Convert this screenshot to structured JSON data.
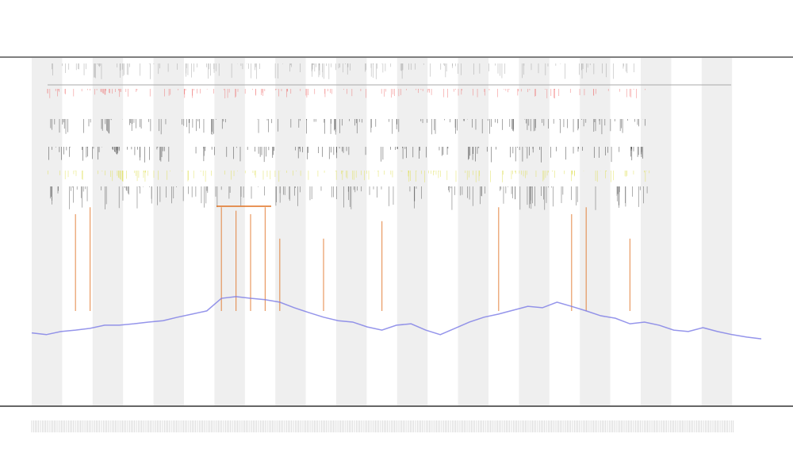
{
  "chart_data": {
    "type": "line",
    "xlim": [
      0,
      100
    ],
    "ylim": [
      0,
      100
    ],
    "x": [
      0,
      2,
      4,
      6,
      8,
      10,
      12,
      14,
      16,
      18,
      20,
      22,
      24,
      26,
      28,
      30,
      32,
      34,
      36,
      38,
      40,
      42,
      44,
      46,
      48,
      50,
      52,
      54,
      56,
      58,
      60,
      62,
      64,
      66,
      68,
      70,
      72,
      74,
      76,
      78,
      80,
      82,
      84,
      86,
      88,
      90,
      92,
      94,
      96,
      98,
      100
    ],
    "series": [
      {
        "color": "#7a7ae6",
        "values": [
          21,
          20.5,
          21.4,
          21.8,
          22.3,
          23.2,
          23.2,
          23.6,
          24.1,
          24.5,
          25.5,
          26.4,
          27.3,
          30.9,
          31.4,
          30.9,
          30.5,
          29.8,
          28.2,
          26.8,
          25.5,
          24.5,
          24.1,
          22.7,
          21.8,
          23.2,
          23.6,
          21.8,
          20.5,
          22.3,
          24.1,
          25.5,
          26.4,
          27.5,
          28.6,
          28.2,
          29.8,
          28.6,
          27.3,
          25.9,
          25.2,
          23.6,
          24.1,
          23.2,
          21.8,
          21.4,
          22.5,
          21.4,
          20.5,
          19.8,
          19.3
        ]
      }
    ],
    "spikes": {
      "color": "#e07020",
      "x": [
        6,
        8,
        26,
        28,
        30,
        32,
        34,
        40,
        48,
        64,
        74,
        76,
        82
      ],
      "values": [
        55,
        57,
        57,
        56,
        55,
        57,
        48,
        48,
        53,
        57,
        55,
        57,
        48
      ]
    }
  }
}
